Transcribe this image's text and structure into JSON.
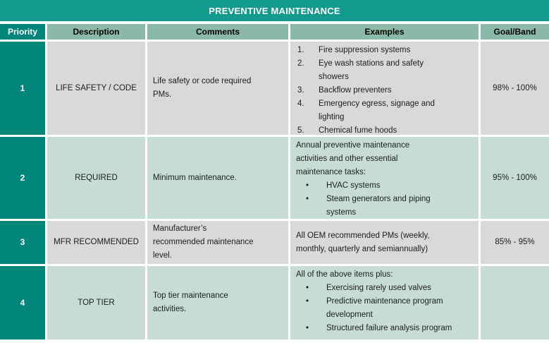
{
  "title": "PREVENTIVE MAINTENANCE",
  "colors": {
    "title_bg": "#129a8c",
    "title_text": "#ffffff",
    "priority_bg": "#00857a",
    "header_bg": "#8abaa7",
    "row_alt_gray": "#d9d9d9",
    "row_alt_green": "#c7ddd4",
    "body_text": "#1c1c1c"
  },
  "table": {
    "headers": [
      "Priority",
      "Description",
      "Comments",
      "Examples",
      "Goal/Band"
    ],
    "rows": [
      {
        "priority": "1",
        "description": "LIFE SAFETY / CODE",
        "comments": "Life safety or code required PMs.",
        "examples": {
          "type": "numbered",
          "items": [
            {
              "marker": "1.",
              "text": "Fire suppression systems"
            },
            {
              "marker": "2.",
              "text": "Eye wash stations and safety showers"
            },
            {
              "marker": "3.",
              "text": "Backflow preventers"
            },
            {
              "marker": "4.",
              "text": "Emergency egress, signage and lighting"
            },
            {
              "marker": "5.",
              "text": "Chemical fume hoods"
            }
          ]
        },
        "goal": "98% - 100%"
      },
      {
        "priority": "2",
        "description": "REQUIRED",
        "comments": "Minimum maintenance.",
        "examples": {
          "type": "bulleted",
          "intro": "Annual preventive maintenance activities and other essential maintenance tasks:",
          "items": [
            {
              "marker": "•",
              "text": "HVAC systems"
            },
            {
              "marker": "•",
              "text": "Steam generators and piping systems"
            }
          ]
        },
        "goal": "95% - 100%"
      },
      {
        "priority": "3",
        "description": "MFR RECOMMENDED",
        "comments": "Manufacturer’s recommended maintenance level.",
        "examples": {
          "type": "plain",
          "text": "All OEM recommended PMs (weekly, monthly, quarterly and semiannually)"
        },
        "goal": "85% - 95%"
      },
      {
        "priority": "4",
        "description": "TOP TIER",
        "comments": "Top tier maintenance activities.",
        "examples": {
          "type": "bulleted",
          "intro": "All of the above items plus:",
          "items": [
            {
              "marker": "•",
              "text": "Exercising rarely used valves"
            },
            {
              "marker": "•",
              "text": "Predictive maintenance program development"
            },
            {
              "marker": "•",
              "text": "Structured failure analysis program"
            }
          ]
        },
        "goal": ""
      }
    ]
  }
}
